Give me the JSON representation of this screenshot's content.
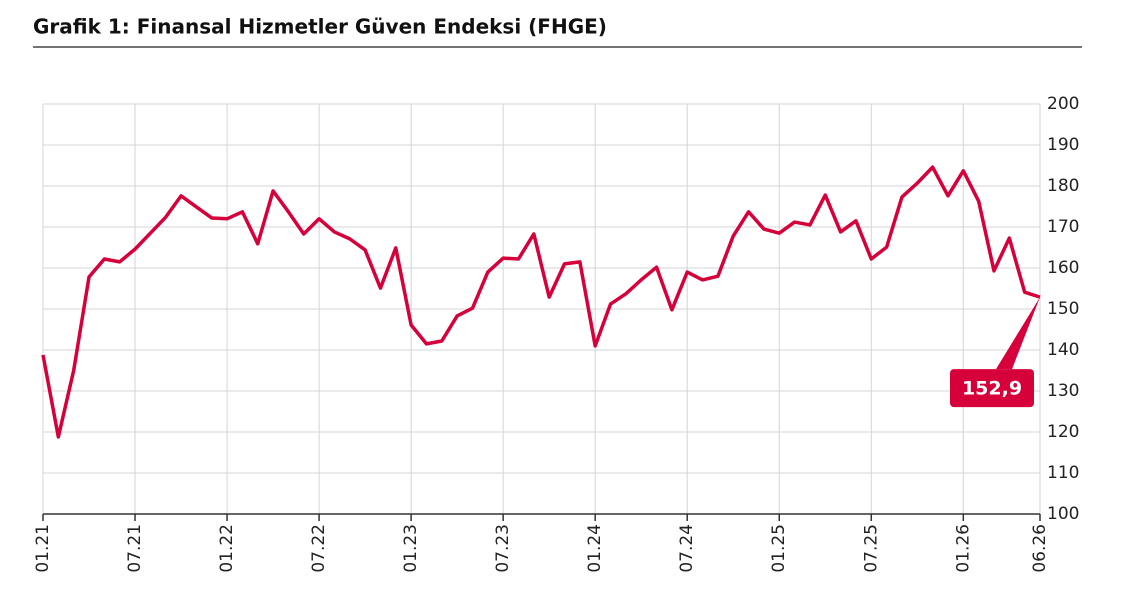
{
  "chart_data": {
    "type": "line",
    "title": "Grafik 1: Finansal Hizmetler Güven Endeksi (FHGE)",
    "categories": [
      "01.21",
      null,
      null,
      null,
      null,
      null,
      "07.21",
      null,
      null,
      null,
      null,
      null,
      "01.22",
      null,
      null,
      null,
      null,
      null,
      "07.22",
      null,
      null,
      null,
      null,
      null,
      "01.23",
      null,
      null,
      null,
      null,
      null,
      "07.23",
      null,
      null,
      null,
      null,
      null,
      "01.24",
      null,
      null,
      null,
      null,
      null,
      "07.24",
      null,
      null,
      null,
      null,
      null,
      "01.25",
      null,
      null,
      null,
      null,
      null,
      "07.25",
      null,
      null,
      null,
      null,
      null,
      "01.26",
      null,
      null,
      null,
      null,
      "06.26"
    ],
    "series": [
      {
        "name": "FHGE",
        "color": "#d6003a",
        "values": [
          138.8,
          118.8,
          135,
          157.8,
          162.2,
          161.5,
          164.6,
          168.5,
          172.4,
          177.6,
          174.9,
          172.2,
          172,
          173.7,
          165.9,
          178.8,
          173.7,
          168.3,
          172,
          168.8,
          167.1,
          164.4,
          155.1,
          164.9,
          146.1,
          141.5,
          142.2,
          148.3,
          150.2,
          159,
          162.4,
          162.2,
          168.3,
          152.9,
          161,
          161.5,
          141,
          151.2,
          153.7,
          157.1,
          160.2,
          149.8,
          159,
          157.1,
          158,
          167.8,
          173.7,
          169.5,
          168.5,
          171.2,
          170.5,
          177.8,
          168.8,
          171.5,
          162.2,
          165.1,
          177.3,
          180.7,
          184.6,
          177.6,
          183.7,
          176.3,
          159.3,
          167.3,
          154.1,
          152.9
        ],
        "value_labels": [
          null,
          null,
          null,
          null,
          null,
          null,
          null,
          null,
          null,
          null,
          null,
          null,
          null,
          null,
          null,
          null,
          null,
          null,
          null,
          null,
          null,
          null,
          null,
          null,
          null,
          null,
          null,
          null,
          null,
          null,
          null,
          null,
          null,
          null,
          null,
          null,
          null,
          null,
          null,
          null,
          null,
          null,
          null,
          null,
          null,
          null,
          null,
          null,
          null,
          null,
          null,
          null,
          null,
          null,
          null,
          null,
          null,
          null,
          null,
          null,
          null,
          null,
          null,
          null,
          null,
          "152,9"
        ]
      }
    ],
    "ylim": [
      100,
      200
    ],
    "yticks": [
      100,
      110,
      120,
      130,
      140,
      150,
      160,
      170,
      180,
      190,
      200
    ],
    "grid": true
  }
}
